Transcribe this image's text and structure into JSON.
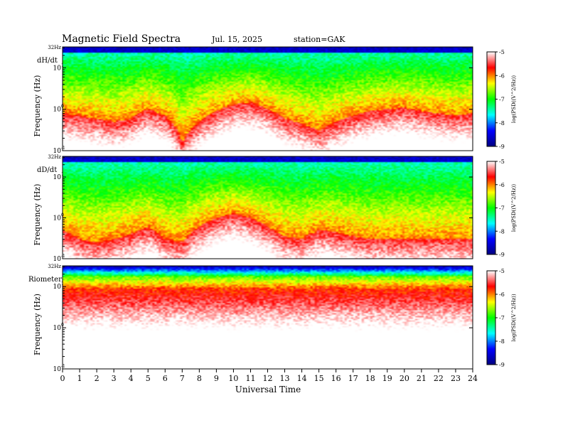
{
  "header": {
    "title": "Magnetic  Field  Spectra",
    "date": "Jul.  15, 2025",
    "station": "station=GAK"
  },
  "colorbar": {
    "label": "log(PSD((V^2/Hz))",
    "ticks": [
      "-5",
      "-6",
      "-7",
      "-8",
      "-9"
    ],
    "stops": [
      "#ffffff",
      "#ff0000",
      "#ffff00",
      "#00ff00",
      "#00ffff",
      "#0000ff",
      "#000080"
    ]
  },
  "chart_data": [
    {
      "type": "heatmap",
      "panel_label": "dH/dt",
      "ylabel": "Frequency  (Hz)",
      "ytick_labels": [
        "32Hz",
        "10",
        "10",
        "10"
      ],
      "ytick_exponents": [
        "",
        "1",
        "0",
        "-1"
      ],
      "zlim": [
        -9,
        -5
      ],
      "noise_floor_hz": [
        0.8,
        0.7,
        0.6,
        0.5,
        0.6,
        1.0,
        0.7,
        0.15,
        0.5,
        0.9,
        1.3,
        1.5,
        1.0,
        0.6,
        0.45,
        0.3,
        0.5,
        0.7,
        0.9,
        1.0,
        1.1,
        0.9,
        0.8,
        0.7,
        0.8
      ],
      "x": [
        0,
        1,
        2,
        3,
        4,
        5,
        6,
        7,
        8,
        9,
        10,
        11,
        12,
        13,
        14,
        15,
        16,
        17,
        18,
        19,
        20,
        21,
        22,
        23,
        24
      ]
    },
    {
      "type": "heatmap",
      "panel_label": "dD/dt",
      "ylabel": "Frequency  (Hz)",
      "ytick_labels": [
        "32Hz",
        "10",
        "10",
        "10"
      ],
      "ytick_exponents": [
        "",
        "1",
        "0",
        "-1"
      ],
      "zlim": [
        -9,
        -5
      ],
      "noise_floor_hz": [
        0.5,
        0.3,
        0.25,
        0.3,
        0.4,
        0.6,
        0.3,
        0.25,
        0.6,
        1.0,
        1.3,
        1.0,
        0.6,
        0.35,
        0.3,
        0.5,
        0.45,
        0.35,
        0.3,
        0.3,
        0.3,
        0.3,
        0.3,
        0.3,
        0.3
      ],
      "x": [
        0,
        1,
        2,
        3,
        4,
        5,
        6,
        7,
        8,
        9,
        10,
        11,
        12,
        13,
        14,
        15,
        16,
        17,
        18,
        19,
        20,
        21,
        22,
        23,
        24
      ]
    },
    {
      "type": "heatmap",
      "panel_label": "Riometer",
      "ylabel": "Frequency  (Hz)",
      "ytick_labels": [
        "32Hz",
        "10",
        "10",
        "10"
      ],
      "ytick_exponents": [
        "",
        "1",
        "0",
        "-1"
      ],
      "zlim": [
        -9,
        -5
      ],
      "noise_floor_hz": [
        6,
        6,
        6,
        6,
        6,
        6,
        6,
        6,
        6,
        6,
        6,
        6,
        6,
        6,
        6,
        6,
        6,
        6,
        6,
        6,
        6,
        6,
        6,
        6,
        6
      ],
      "x": [
        0,
        1,
        2,
        3,
        4,
        5,
        6,
        7,
        8,
        9,
        10,
        11,
        12,
        13,
        14,
        15,
        16,
        17,
        18,
        19,
        20,
        21,
        22,
        23,
        24
      ]
    }
  ],
  "xaxis": {
    "label": "Universal  Time",
    "ticks": [
      "0",
      "1",
      "2",
      "3",
      "4",
      "5",
      "6",
      "7",
      "8",
      "9",
      "10",
      "11",
      "12",
      "13",
      "14",
      "15",
      "16",
      "17",
      "18",
      "19",
      "20",
      "21",
      "22",
      "23",
      "24"
    ],
    "xlim": [
      0,
      24
    ]
  }
}
